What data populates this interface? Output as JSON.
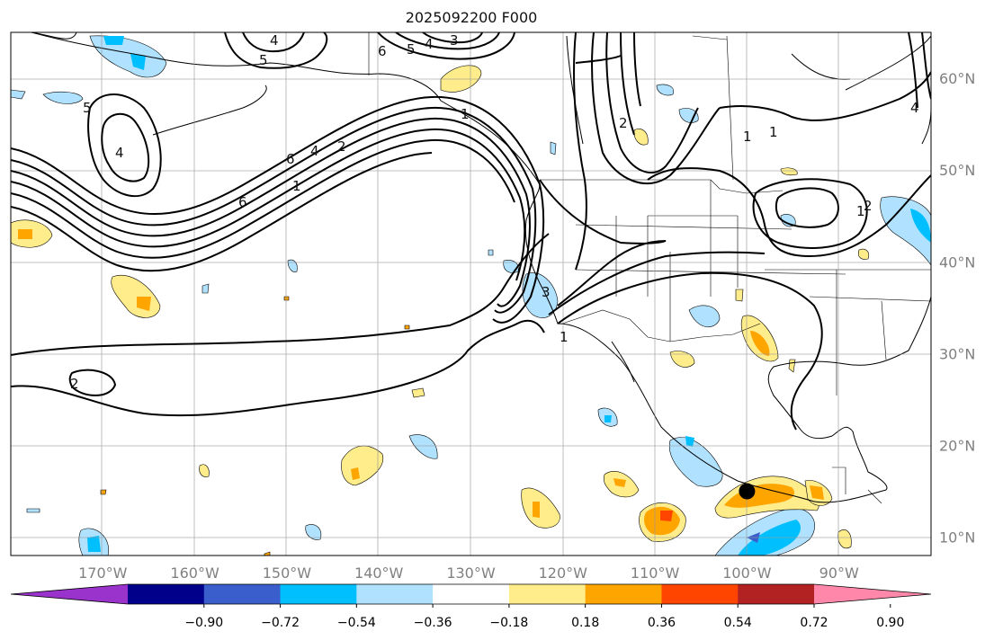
{
  "title": "2025092200 F000",
  "map": {
    "lon_range": [
      -180,
      -80
    ],
    "lat_range": [
      8,
      65
    ],
    "lon_ticks": [
      {
        "value": -170,
        "label": "170°W"
      },
      {
        "value": -160,
        "label": "160°W"
      },
      {
        "value": -150,
        "label": "150°W"
      },
      {
        "value": -140,
        "label": "140°W"
      },
      {
        "value": -130,
        "label": "130°W"
      },
      {
        "value": -120,
        "label": "120°W"
      },
      {
        "value": -110,
        "label": "110°W"
      },
      {
        "value": -100,
        "label": "100°W"
      },
      {
        "value": -90,
        "label": "90°W"
      }
    ],
    "lat_ticks": [
      {
        "value": 10,
        "label": "10°N"
      },
      {
        "value": 20,
        "label": "20°N"
      },
      {
        "value": 30,
        "label": "30°N"
      },
      {
        "value": 40,
        "label": "40°N"
      },
      {
        "value": 50,
        "label": "50°N"
      },
      {
        "value": 60,
        "label": "60°N"
      }
    ],
    "grid": true,
    "marker": {
      "lon": -100,
      "lat": 15,
      "color": "#000000"
    }
  },
  "colorbar": {
    "placement": "bottom",
    "colors": [
      "#9933cc",
      "#00008b",
      "#3a5fcd",
      "#00bfff",
      "#b0e2ff",
      "#ffffff",
      "#ffec8b",
      "#ffa500",
      "#ff4500",
      "#b22222",
      "#ff88aa"
    ],
    "ticks": [
      "−0.90",
      "−0.72",
      "−0.54",
      "−0.36",
      "−0.18",
      "0.18",
      "0.36",
      "0.54",
      "0.72",
      "0.90"
    ]
  },
  "contour_labels": [
    "4",
    "5",
    "6",
    "5",
    "4",
    "3",
    "6",
    "4",
    "2",
    "1",
    "6",
    "5",
    "4",
    "1",
    "2",
    "1",
    "1",
    "2",
    "1",
    "3",
    "4",
    "1",
    "2"
  ]
}
